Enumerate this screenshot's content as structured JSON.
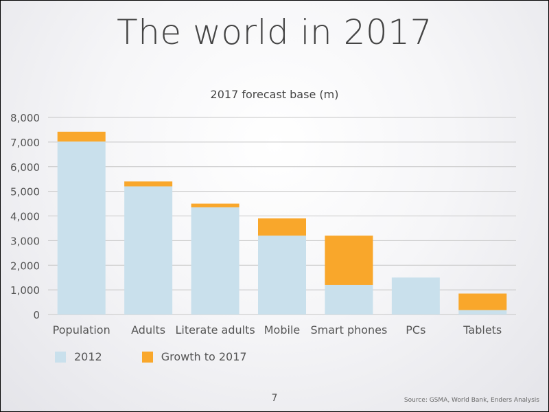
{
  "slide": {
    "title": "The world in 2017",
    "page_number": "7",
    "source": "Source: GSMA, World Bank, Enders Analysis"
  },
  "colors": {
    "base": "#c9e0ec",
    "growth": "#f9a72b",
    "grid": "#c6c6c6",
    "axis_text": "#555555"
  },
  "chart_data": {
    "type": "bar",
    "stacked": true,
    "title": "2017 forecast base (m)",
    "xlabel": "",
    "ylabel": "",
    "ylim": [
      0,
      8000
    ],
    "yticks": [
      0,
      1000,
      2000,
      3000,
      4000,
      5000,
      6000,
      7000,
      8000
    ],
    "ytick_labels": [
      "0",
      "1,000",
      "2,000",
      "3,000",
      "4,000",
      "5,000",
      "6,000",
      "7,000",
      "8,000"
    ],
    "grid": true,
    "legend_position": "bottom-left",
    "categories": [
      "Population",
      "Adults",
      "Literate adults",
      "Mobile",
      "Smart phones",
      "PCs",
      "Tablets"
    ],
    "series": [
      {
        "name": "2012",
        "values": [
          7020,
          5200,
          4350,
          3200,
          1200,
          1500,
          180
        ]
      },
      {
        "name": "Growth to 2017",
        "values": [
          400,
          200,
          150,
          700,
          2000,
          0,
          670
        ]
      }
    ]
  }
}
